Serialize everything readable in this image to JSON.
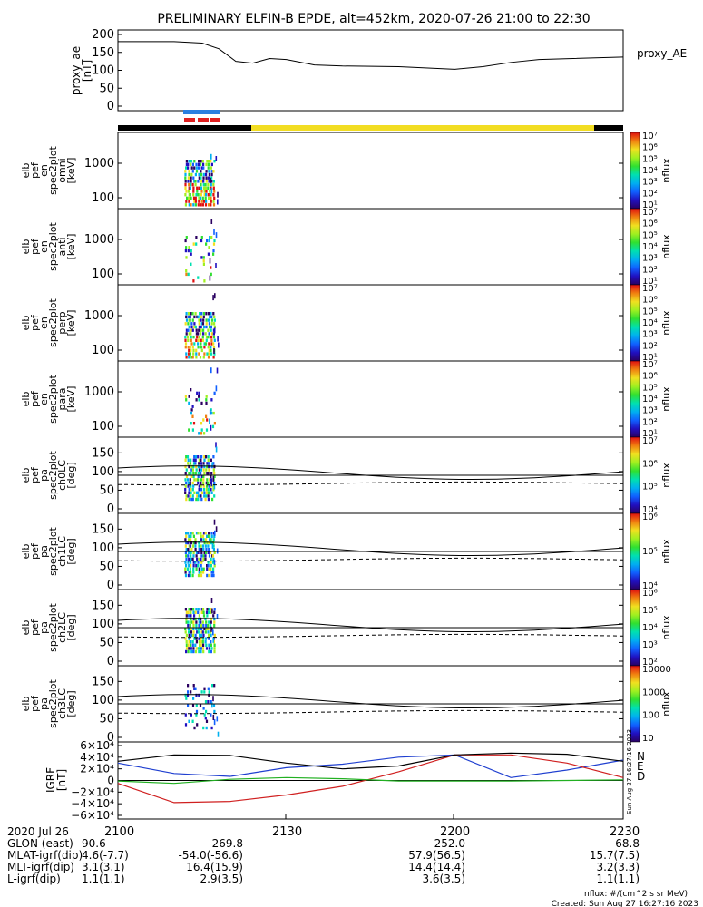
{
  "title": "PRELIMINARY ELFIN-B EPDE, alt=452km, 2020-07-26 21:00 to 22:30",
  "footer": {
    "units": "nflux: #/(cm^2 s sr MeV)",
    "created": "Created: Sun Aug 27 16:27:16 2023",
    "side_stamp": "Sun Aug 27 16:27:16 2023"
  },
  "colors": {
    "axes": "#000000",
    "sc_bar_black": "#000000",
    "sc_bar_yellow": "#f2dd22",
    "blue_marker": "#2b7fe0",
    "red_marker": "#e02020",
    "igrf_n": "#1f3fd0",
    "igrf_e": "#d02020",
    "igrf_d": "#22b022",
    "igrf_total": "#000000"
  },
  "x_ticks": [
    "2100",
    "2130",
    "2200",
    "2230"
  ],
  "ephemeris": {
    "row_labels": [
      "2020 Jul 26",
      "GLON (east)",
      "MLAT-igrf(dip)",
      "MLT-igrf(dip)",
      "L-igrf(dip)"
    ],
    "cols": [
      [
        "90.6",
        "4.6(-7.7)",
        "3.1(3.1)",
        "1.1(1.1)"
      ],
      [
        "269.8",
        "-54.0(-56.6)",
        "16.4(15.9)",
        "2.9(3.5)"
      ],
      [
        "252.0",
        "57.9(56.5)",
        "14.4(14.4)",
        "3.6(3.5)"
      ],
      [
        "68.8",
        "15.7(7.5)",
        "3.2(3.3)",
        "1.1(1.1)"
      ]
    ]
  },
  "chart_data": [
    {
      "type": "line",
      "panel": "proxy_ae",
      "ylabel": "proxy_ae [nT]",
      "legend": "proxy_AE",
      "ylim": [
        0,
        200
      ],
      "yticks": [
        "200",
        "150",
        "100",
        "50",
        "0"
      ],
      "x": [
        "2100",
        "2110",
        "2115",
        "2118",
        "2121",
        "2124",
        "2127",
        "2130",
        "2135",
        "2140",
        "2150",
        "2200",
        "2205",
        "2210",
        "2215",
        "2230"
      ],
      "values": [
        180,
        180,
        176,
        160,
        125,
        120,
        133,
        130,
        115,
        112,
        110,
        103,
        110,
        122,
        130,
        137
      ]
    },
    {
      "type": "heatmap",
      "panels": [
        {
          "ylabel": [
            "elb",
            "pef",
            "en",
            "spec2plot",
            "omni",
            "[keV]"
          ],
          "yticks": [
            "1000",
            "100"
          ],
          "cbar_ticks": [
            "10⁷",
            "10⁶",
            "10⁵",
            "10⁴",
            "10³",
            "10²",
            "10¹"
          ],
          "cbar_label": "nflux"
        },
        {
          "ylabel": [
            "elb",
            "pef",
            "en",
            "spec2plot",
            "anti",
            "[keV]"
          ],
          "yticks": [
            "1000",
            "100"
          ],
          "cbar_ticks": [
            "10⁷",
            "10⁶",
            "10⁵",
            "10⁴",
            "10³",
            "10²",
            "10¹"
          ],
          "cbar_label": "nflux"
        },
        {
          "ylabel": [
            "elb",
            "pef",
            "en",
            "spec2plot",
            "perp",
            "[keV]"
          ],
          "yticks": [
            "1000",
            "100"
          ],
          "cbar_ticks": [
            "10⁷",
            "10⁶",
            "10⁵",
            "10⁴",
            "10³",
            "10²",
            "10¹"
          ],
          "cbar_label": "nflux"
        },
        {
          "ylabel": [
            "elb",
            "pef",
            "en",
            "spec2plot",
            "para",
            "[keV]"
          ],
          "yticks": [
            "1000",
            "100"
          ],
          "cbar_ticks": [
            "10⁷",
            "10⁶",
            "10⁵",
            "10⁴",
            "10³",
            "10²",
            "10¹"
          ],
          "cbar_label": "nflux"
        },
        {
          "ylabel": [
            "elb",
            "pef",
            "pa",
            "spec2plot",
            "ch0LC",
            "[deg]"
          ],
          "yticks": [
            "150",
            "100",
            "50",
            "0"
          ],
          "cbar_ticks": [
            "10⁷",
            "10⁶",
            "10⁵",
            "10⁴"
          ],
          "cbar_label": "nflux"
        },
        {
          "ylabel": [
            "elb",
            "pef",
            "pa",
            "spec2plot",
            "ch1LC",
            "[deg]"
          ],
          "yticks": [
            "150",
            "100",
            "50",
            "0"
          ],
          "cbar_ticks": [
            "10⁶",
            "10⁵",
            "10⁴"
          ],
          "cbar_label": "nflux"
        },
        {
          "ylabel": [
            "elb",
            "pef",
            "pa",
            "spec2plot",
            "ch2LC",
            "[deg]"
          ],
          "yticks": [
            "150",
            "100",
            "50",
            "0"
          ],
          "cbar_ticks": [
            "10⁶",
            "10⁵",
            "10⁴",
            "10³",
            "10²"
          ],
          "cbar_label": "nflux"
        },
        {
          "ylabel": [
            "elb",
            "pef",
            "pa",
            "spec2plot",
            "ch3LC",
            "[deg]"
          ],
          "yticks": [
            "150",
            "100",
            "50",
            "0"
          ],
          "cbar_ticks": [
            "10000",
            "1000",
            "100",
            "10"
          ],
          "cbar_label": "nflux"
        }
      ]
    },
    {
      "type": "line",
      "panel": "igrf",
      "ylabel": "IGRF [nT]",
      "yticks": [
        "6×10⁴",
        "4×10⁴",
        "2×10⁴",
        "0",
        "−2×10⁴",
        "−4×10⁴",
        "−6×10⁴"
      ],
      "ylim": [
        -60000,
        60000
      ],
      "legend": [
        "N",
        "E",
        "D"
      ],
      "x": [
        "2100",
        "2110",
        "2120",
        "2130",
        "2140",
        "2150",
        "2200",
        "2210",
        "2220",
        "2230"
      ],
      "series": [
        {
          "name": "N",
          "values": [
            30000,
            12000,
            7000,
            22000,
            28000,
            40000,
            44000,
            5000,
            18000,
            35000
          ]
        },
        {
          "name": "E",
          "values": [
            -5000,
            -38000,
            -36000,
            -25000,
            -10000,
            15000,
            44000,
            44000,
            30000,
            5000
          ]
        },
        {
          "name": "D",
          "values": [
            -1000,
            -5000,
            2000,
            5000,
            3000,
            -1000,
            -1000,
            -1000,
            0,
            1000
          ]
        },
        {
          "values": [
            33000,
            44000,
            43000,
            30000,
            20000,
            25000,
            44000,
            47000,
            45000,
            33000
          ]
        }
      ]
    }
  ]
}
